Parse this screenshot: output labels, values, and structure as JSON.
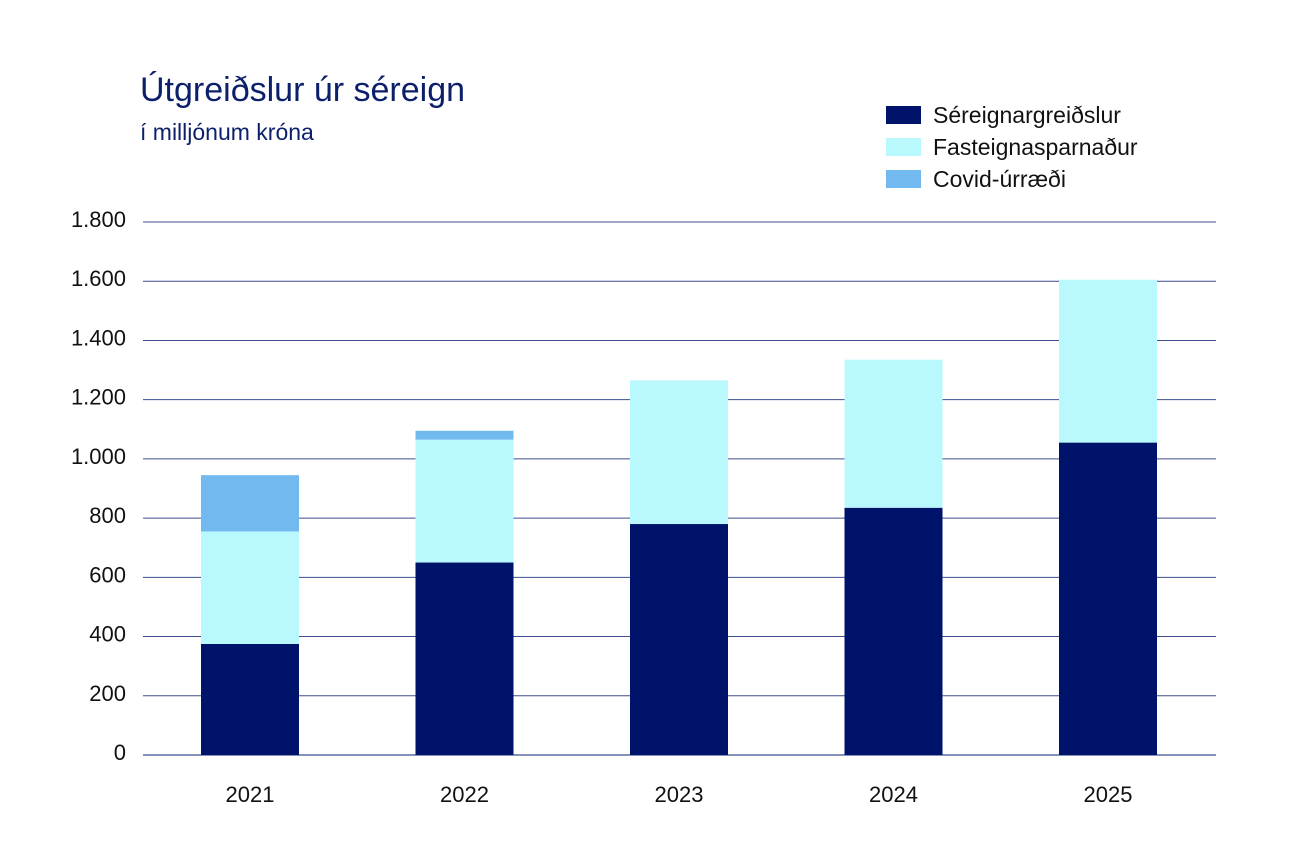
{
  "chart_data": {
    "type": "bar",
    "stacked": true,
    "title": "Útgreiðslur úr séreign",
    "subtitle": "í milljónum króna",
    "categories": [
      "2021",
      "2022",
      "2023",
      "2024",
      "2025"
    ],
    "series": [
      {
        "name": "Séreignargreiðslur",
        "color": "#00136b",
        "values": [
          375,
          650,
          780,
          835,
          1055
        ]
      },
      {
        "name": "Fasteignasparnaður",
        "color": "#b9f8fc",
        "values": [
          380,
          415,
          485,
          500,
          550
        ]
      },
      {
        "name": "Covid-úrræði",
        "color": "#72b9f0",
        "values": [
          190,
          30,
          0,
          0,
          0
        ]
      }
    ],
    "ylim": [
      0,
      1800
    ],
    "yticks": [
      0,
      200,
      400,
      600,
      800,
      1000,
      1200,
      1400,
      1600,
      1800
    ],
    "ytick_labels": [
      "0",
      "200",
      "400",
      "600",
      "800",
      "1.000",
      "1.200",
      "1.400",
      "1.600",
      "1.800"
    ],
    "grid": true,
    "legend_position": "top-right",
    "xlabel": "",
    "ylabel": ""
  }
}
